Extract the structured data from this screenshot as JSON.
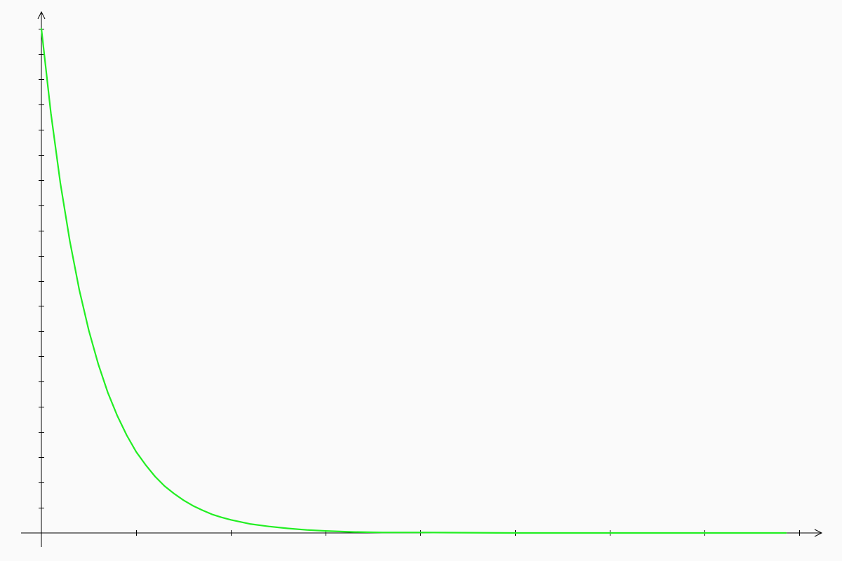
{
  "chart_data": {
    "type": "line",
    "title": "",
    "xlabel": "",
    "ylabel": "",
    "xlim": [
      0,
      8
    ],
    "ylim": [
      0,
      1
    ],
    "x_ticks": [
      0,
      1,
      2,
      3,
      4,
      5,
      6,
      7,
      8
    ],
    "y_tick_count": 20,
    "grid": false,
    "legend": "none",
    "series": [
      {
        "color": "#22ee22",
        "x": [
          0,
          0.1,
          0.2,
          0.3,
          0.4,
          0.5,
          0.6,
          0.7,
          0.8,
          0.9,
          1.0,
          1.1,
          1.2,
          1.3,
          1.4,
          1.5,
          1.6,
          1.7,
          1.8,
          1.9,
          2.0,
          2.2,
          2.4,
          2.6,
          2.8,
          3.0,
          3.3,
          3.6,
          4.0,
          5.0,
          6.0,
          7.0,
          7.86
        ],
        "y": [
          1.0,
          0.833,
          0.694,
          0.579,
          0.482,
          0.402,
          0.335,
          0.279,
          0.233,
          0.194,
          0.161,
          0.135,
          0.112,
          0.093,
          0.078,
          0.065,
          0.054,
          0.045,
          0.037,
          0.031,
          0.026,
          0.018,
          0.013,
          0.009,
          0.006,
          0.004,
          0.002,
          0.001,
          0.001,
          0.0,
          0.0,
          0.0,
          0.0
        ]
      }
    ]
  }
}
